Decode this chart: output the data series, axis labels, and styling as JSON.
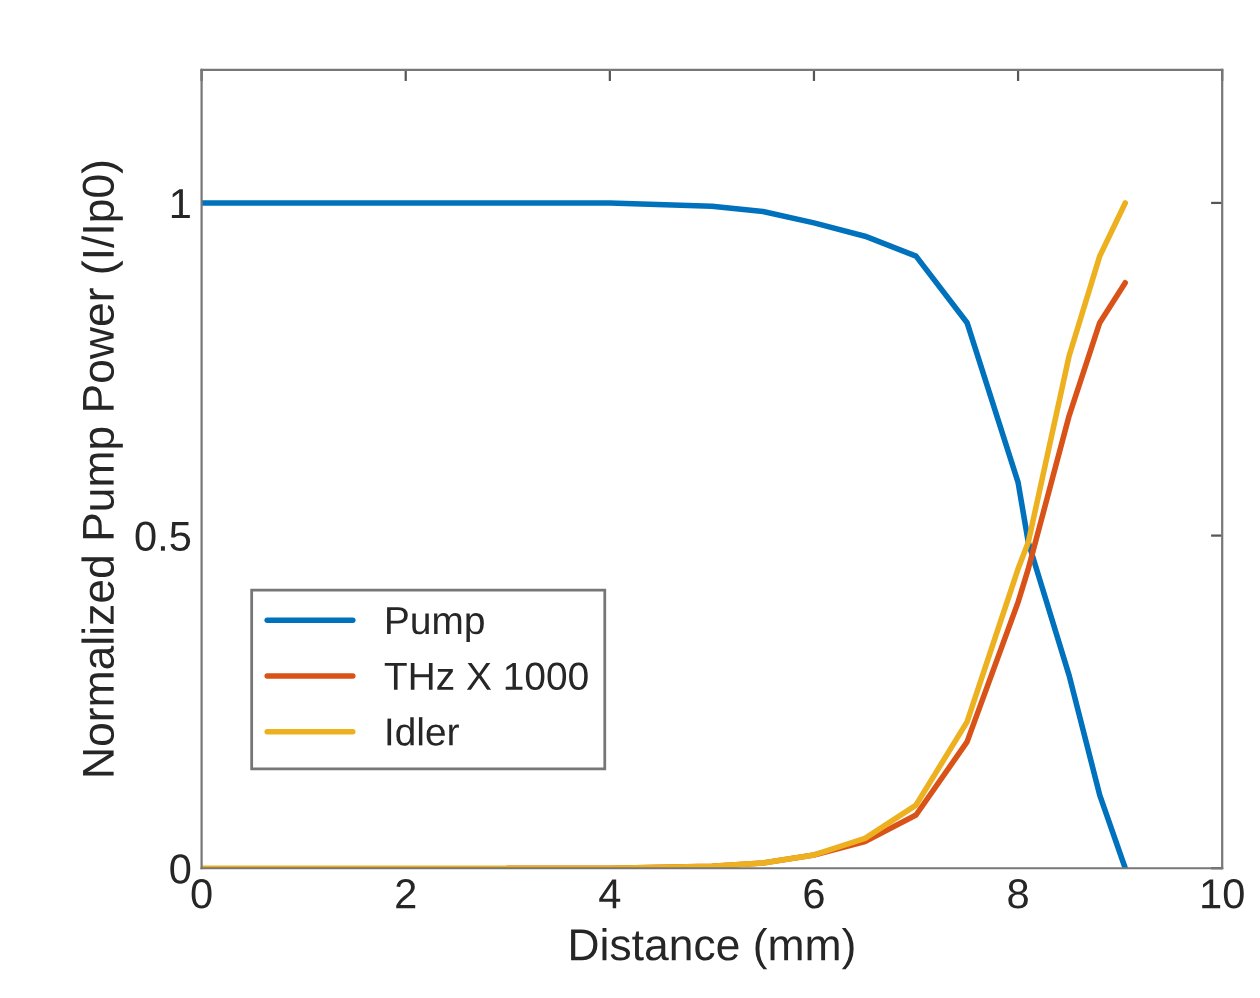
{
  "chart_data": {
    "type": "line",
    "xlabel": "Distance (mm)",
    "ylabel": "Normalized Pump Power (I/Ip0)",
    "xlim": [
      0,
      10
    ],
    "ylim": [
      0,
      1.2
    ],
    "xticks": [
      0,
      2,
      4,
      6,
      8,
      10
    ],
    "yticks": [
      0,
      0.5,
      1
    ],
    "grid": false,
    "legend": "bottom left",
    "line_style": "solid",
    "marker": "none",
    "series": [
      {
        "name": "Pump",
        "color": "#0072bd",
        "x": [
          0,
          1,
          2,
          3,
          4,
          5,
          5.5,
          6,
          6.5,
          7,
          7.5,
          8,
          8.1,
          8.5,
          8.8,
          9.05
        ],
        "values": [
          1,
          1,
          1,
          1,
          1,
          0.995,
          0.987,
          0.97,
          0.95,
          0.92,
          0.82,
          0.58,
          0.49,
          0.29,
          0.11,
          0
        ]
      },
      {
        "name": "THz X 1000",
        "color": "#d95319",
        "x": [
          3,
          4,
          5,
          5.5,
          6,
          6.5,
          7,
          7.5,
          8,
          8.1,
          8.5,
          8.8,
          9.05
        ],
        "values": [
          0,
          0,
          0.003,
          0.008,
          0.02,
          0.04,
          0.08,
          0.19,
          0.4,
          0.45,
          0.68,
          0.82,
          0.88
        ]
      },
      {
        "name": "Idler",
        "color": "#edb120",
        "x": [
          0,
          1,
          2,
          3,
          4,
          5,
          5.5,
          6,
          6.5,
          7,
          7.5,
          8,
          8.1,
          8.5,
          8.8,
          9.05
        ],
        "values": [
          0,
          0,
          0,
          0,
          0,
          0.003,
          0.008,
          0.02,
          0.045,
          0.095,
          0.22,
          0.45,
          0.49,
          0.77,
          0.92,
          1.0
        ]
      }
    ]
  }
}
